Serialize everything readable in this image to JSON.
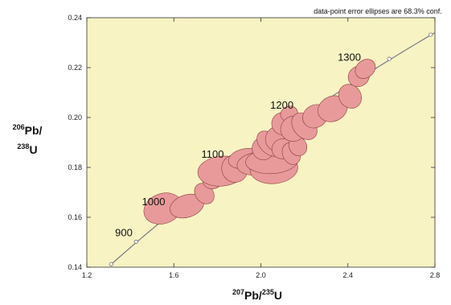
{
  "chart_data": {
    "type": "scatter",
    "subtype": "concordia-diagram",
    "title": "",
    "annotation": "data-point error ellipses are 68.3% conf.",
    "xlabel": {
      "sup": "207",
      "base": "Pb/",
      "sup2": "235",
      "base2": "U"
    },
    "ylabel": {
      "sup": "206",
      "base": "Pb/",
      "sup2": "238",
      "base2": "U"
    },
    "xlim": [
      1.2,
      2.8
    ],
    "ylim": [
      0.14,
      0.24
    ],
    "xticks": [
      "1.2",
      "1.6",
      "2.0",
      "2.4",
      "2.8"
    ],
    "yticks": [
      "0.14",
      "0.16",
      "0.18",
      "0.20",
      "0.22",
      "0.24"
    ],
    "xtick_values": [
      1.2,
      1.6,
      2.0,
      2.4,
      2.8
    ],
    "ytick_values": [
      0.14,
      0.16,
      0.18,
      0.2,
      0.22,
      0.24
    ],
    "grid": false,
    "colors": {
      "plot_background": "#f7f3c3",
      "ellipse_fill": "#e89a9a",
      "ellipse_stroke": "#8a3d3d",
      "concordia": "#707080"
    },
    "concordia_age_labels": [
      {
        "label": "900",
        "x": 1.41,
        "y": 0.1525
      },
      {
        "label": "1000",
        "x": 1.56,
        "y": 0.1648
      },
      {
        "label": "1100",
        "x": 1.83,
        "y": 0.1838
      },
      {
        "label": "1200",
        "x": 2.15,
        "y": 0.2035
      },
      {
        "label": "1300",
        "x": 2.46,
        "y": 0.2228
      }
    ],
    "concordia_markers": [
      {
        "x": 1.312,
        "y": 0.1412
      },
      {
        "x": 1.426,
        "y": 0.1502
      },
      {
        "x": 2.59,
        "y": 0.2235
      },
      {
        "x": 2.78,
        "y": 0.2332
      }
    ],
    "ellipses": [
      {
        "x": 1.55,
        "y": 0.1635,
        "rx": 0.09,
        "ry": 0.006,
        "angle": 20
      },
      {
        "x": 1.66,
        "y": 0.1645,
        "rx": 0.08,
        "ry": 0.0045,
        "angle": 18
      },
      {
        "x": 1.74,
        "y": 0.1695,
        "rx": 0.04,
        "ry": 0.0045,
        "angle": 40
      },
      {
        "x": 1.78,
        "y": 0.1755,
        "rx": 0.05,
        "ry": 0.004,
        "angle": 30
      },
      {
        "x": 1.82,
        "y": 0.1785,
        "rx": 0.11,
        "ry": 0.006,
        "angle": 5
      },
      {
        "x": 1.88,
        "y": 0.1795,
        "rx": 0.06,
        "ry": 0.0055,
        "angle": 15
      },
      {
        "x": 1.93,
        "y": 0.1835,
        "rx": 0.08,
        "ry": 0.004,
        "angle": 10
      },
      {
        "x": 1.98,
        "y": 0.1815,
        "rx": 0.09,
        "ry": 0.0045,
        "angle": 8
      },
      {
        "x": 2.03,
        "y": 0.1805,
        "rx": 0.07,
        "ry": 0.005,
        "angle": 0
      },
      {
        "x": 2.06,
        "y": 0.1795,
        "rx": 0.11,
        "ry": 0.006,
        "angle": 5
      },
      {
        "x": 2.05,
        "y": 0.1825,
        "rx": 0.12,
        "ry": 0.005,
        "angle": 3
      },
      {
        "x": 2.01,
        "y": 0.1875,
        "rx": 0.05,
        "ry": 0.0045,
        "angle": 30
      },
      {
        "x": 2.04,
        "y": 0.1895,
        "rx": 0.045,
        "ry": 0.006,
        "angle": 45
      },
      {
        "x": 2.08,
        "y": 0.1915,
        "rx": 0.06,
        "ry": 0.005,
        "angle": 35
      },
      {
        "x": 2.1,
        "y": 0.1875,
        "rx": 0.05,
        "ry": 0.004,
        "angle": 20
      },
      {
        "x": 2.14,
        "y": 0.1855,
        "rx": 0.04,
        "ry": 0.0045,
        "angle": 25
      },
      {
        "x": 2.17,
        "y": 0.1885,
        "rx": 0.04,
        "ry": 0.004,
        "angle": 30
      },
      {
        "x": 2.1,
        "y": 0.1975,
        "rx": 0.05,
        "ry": 0.0045,
        "angle": 20
      },
      {
        "x": 2.13,
        "y": 0.2015,
        "rx": 0.04,
        "ry": 0.003,
        "angle": 20
      },
      {
        "x": 2.15,
        "y": 0.1955,
        "rx": 0.06,
        "ry": 0.005,
        "angle": 30
      },
      {
        "x": 2.2,
        "y": 0.1965,
        "rx": 0.05,
        "ry": 0.006,
        "angle": 40
      },
      {
        "x": 2.25,
        "y": 0.2005,
        "rx": 0.06,
        "ry": 0.0045,
        "angle": 30
      },
      {
        "x": 2.33,
        "y": 0.2035,
        "rx": 0.07,
        "ry": 0.005,
        "angle": 25
      },
      {
        "x": 2.41,
        "y": 0.2085,
        "rx": 0.05,
        "ry": 0.005,
        "angle": 35
      },
      {
        "x": 2.45,
        "y": 0.2165,
        "rx": 0.05,
        "ry": 0.004,
        "angle": 35
      },
      {
        "x": 2.48,
        "y": 0.2195,
        "rx": 0.05,
        "ry": 0.0035,
        "angle": 40
      }
    ]
  }
}
